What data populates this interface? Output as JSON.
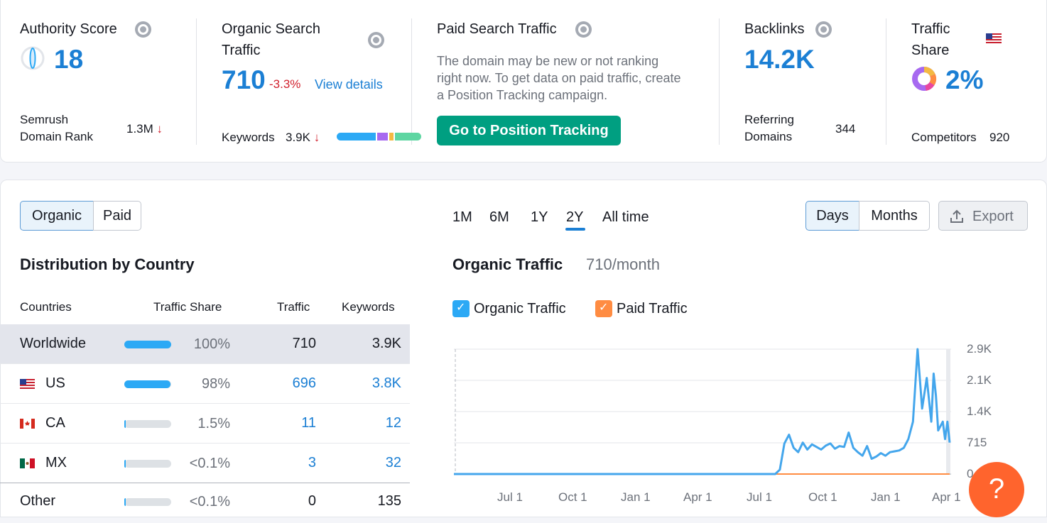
{
  "metrics": {
    "authority": {
      "title": "Authority Score",
      "value": "18",
      "rank_label": "Semrush Domain Rank",
      "rank_value": "1.3M",
      "rank_arrow": "↓"
    },
    "organic": {
      "title": "Organic Search Traffic",
      "value": "710",
      "change": "-3.3%",
      "link": "View details",
      "keywords_label": "Keywords",
      "keywords_value": "3.9K",
      "keywords_arrow": "↓"
    },
    "paid": {
      "title": "Paid Search Traffic",
      "description": "The domain may be new or not ranking right now. To get data on paid traffic, create a Position Tracking campaign.",
      "button": "Go to Position Tracking"
    },
    "backlinks": {
      "title": "Backlinks",
      "value": "14.2K",
      "referring_label": "Referring Domains",
      "referring_value": "344"
    },
    "traffic_share": {
      "title": "Traffic Share",
      "value": "2%",
      "competitors_label": "Competitors",
      "competitors_value": "920"
    }
  },
  "toggle": {
    "organic": "Organic",
    "paid": "Paid"
  },
  "ranges": [
    "1M",
    "6M",
    "1Y",
    "2Y",
    "All time"
  ],
  "active_range": "2Y",
  "granularity": {
    "days": "Days",
    "months": "Months"
  },
  "export_label": "Export",
  "distribution": {
    "title": "Distribution by Country",
    "headers": {
      "countries": "Countries",
      "traffic_share": "Traffic Share",
      "traffic": "Traffic",
      "keywords": "Keywords"
    },
    "rows": [
      {
        "country": "Worldwide",
        "share": "100%",
        "share_fraction": 1.0,
        "traffic": "710",
        "keywords": "3.9K"
      },
      {
        "country": "US",
        "share": "98%",
        "share_fraction": 0.98,
        "traffic": "696",
        "keywords": "3.8K"
      },
      {
        "country": "CA",
        "share": "1.5%",
        "share_fraction": 0.015,
        "traffic": "11",
        "keywords": "12"
      },
      {
        "country": "MX",
        "share": "<0.1%",
        "share_fraction": 0.001,
        "traffic": "3",
        "keywords": "32"
      },
      {
        "country": "Other",
        "share": "<0.1%",
        "share_fraction": 0.001,
        "traffic": "0",
        "keywords": "135"
      }
    ]
  },
  "chart_title": "Organic Traffic",
  "chart_subtitle": "710/month",
  "legend": {
    "organic": "Organic Traffic",
    "paid": "Paid Traffic"
  },
  "colors": {
    "accent": "#1b7fd4",
    "organic": "#44a6ec",
    "paid": "#ff8c42",
    "green_button": "#009f81",
    "help": "#ff642d",
    "negative": "#d1212e"
  },
  "help_label": "?",
  "chart_data": {
    "type": "line",
    "xlabels": [
      "Jul 1",
      "Oct 1",
      "Jan 1",
      "Apr 1",
      "Jul 1",
      "Oct 1",
      "Jan 1",
      "Apr 1"
    ],
    "yticks": [
      "2.9K",
      "2.1K",
      "1.4K",
      "715",
      "0"
    ],
    "ylim": [
      0,
      2860
    ],
    "series": [
      {
        "name": "Organic Traffic",
        "x": [
          0,
          4,
          8,
          12,
          16,
          20,
          24,
          28,
          32,
          36,
          40,
          44,
          48,
          52,
          56,
          60,
          64,
          68,
          70,
          71,
          72,
          73,
          74,
          75,
          76,
          77,
          78,
          79,
          80,
          81,
          82,
          83,
          84,
          85,
          86,
          87,
          88,
          89,
          90,
          91,
          92,
          93,
          94,
          95,
          96,
          97,
          98,
          99,
          100,
          101,
          102,
          103,
          104,
          104.5,
          105,
          105.5,
          106,
          106.5,
          107,
          107.5,
          108
        ],
        "y": [
          0,
          0,
          0,
          0,
          0,
          0,
          0,
          0,
          0,
          0,
          0,
          0,
          0,
          0,
          0,
          0,
          0,
          0,
          0,
          100,
          700,
          900,
          600,
          500,
          720,
          560,
          680,
          620,
          560,
          650,
          700,
          580,
          640,
          620,
          950,
          600,
          500,
          420,
          640,
          350,
          400,
          480,
          420,
          500,
          520,
          540,
          600,
          800,
          1200,
          2860,
          1500,
          2200,
          1200,
          2300,
          1800,
          1000,
          1100,
          1200,
          800,
          1200,
          720
        ]
      },
      {
        "name": "Paid Traffic",
        "x": [
          0,
          108
        ],
        "y": [
          0,
          0
        ]
      }
    ]
  }
}
